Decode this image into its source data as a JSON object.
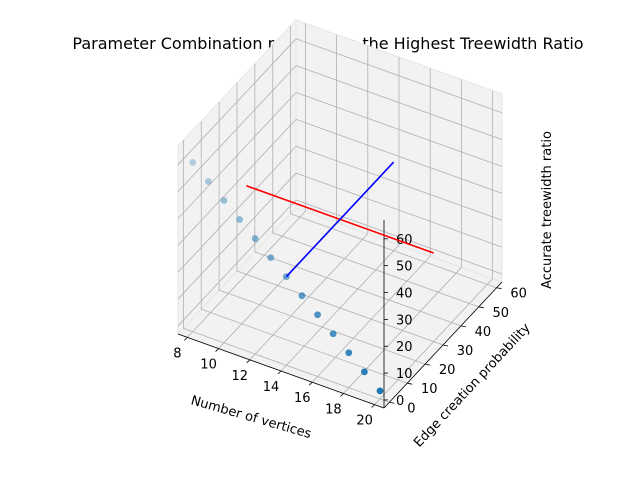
{
  "chart_data": {
    "type": "scatter",
    "title": "Parameter Combination resulting in the Highest Treewidth Ratio",
    "xlabel": "Number of vertices",
    "ylabel": "Edge creation probability",
    "zlabel": "Accurate treewidth ratio",
    "x_ticks": [
      "8",
      "10",
      "12",
      "14",
      "16",
      "18",
      "20"
    ],
    "y_ticks": [
      "0",
      "10",
      "20",
      "30",
      "40",
      "50",
      "60"
    ],
    "z_ticks": [
      "0",
      "10",
      "20",
      "30",
      "40",
      "50",
      "60"
    ],
    "xlim": [
      7.4,
      20.6
    ],
    "ylim": [
      -3,
      63
    ],
    "zlim": [
      -3,
      67
    ],
    "grid": true,
    "colors": {
      "points": "#1f77b4",
      "red_line": "#ff0000",
      "blue_line": "#0000ff",
      "pane": "#f2f2f2"
    },
    "points": [
      {
        "x": 8,
        "y": 0,
        "z": 60
      },
      {
        "x": 9,
        "y": 0,
        "z": 55
      },
      {
        "x": 10,
        "y": 0,
        "z": 50
      },
      {
        "x": 11,
        "y": 0,
        "z": 45
      },
      {
        "x": 12,
        "y": 0,
        "z": 40
      },
      {
        "x": 13,
        "y": 0,
        "z": 35
      },
      {
        "x": 14,
        "y": 0,
        "z": 30
      },
      {
        "x": 15,
        "y": 0,
        "z": 25
      },
      {
        "x": 16,
        "y": 0,
        "z": 20
      },
      {
        "x": 17,
        "y": 0,
        "z": 15
      },
      {
        "x": 18,
        "y": 0,
        "z": 10
      },
      {
        "x": 19,
        "y": 0,
        "z": 5
      },
      {
        "x": 20,
        "y": 0,
        "z": 0
      }
    ],
    "red_line": [
      {
        "x": 8,
        "y": 30,
        "z": 30
      },
      {
        "x": 20,
        "y": 30,
        "z": 30
      }
    ],
    "blue_line": [
      {
        "x": 14,
        "y": 60,
        "z": 30
      },
      {
        "x": 14,
        "y": 0,
        "z": 30
      }
    ]
  }
}
